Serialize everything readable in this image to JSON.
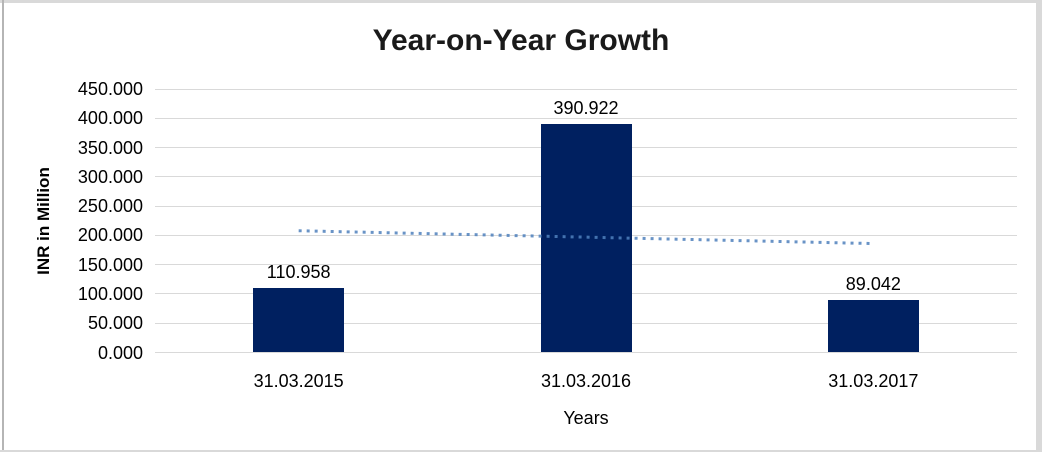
{
  "chart_data": {
    "type": "bar",
    "title": "Year-on-Year Growth",
    "xlabel": "Years",
    "ylabel": "INR in Million",
    "categories": [
      "31.03.2015",
      "31.03.2016",
      "31.03.2017"
    ],
    "values": [
      110.958,
      390.922,
      89.042
    ],
    "value_labels": [
      "110.958",
      "390.922",
      "89.042"
    ],
    "ylim": [
      0,
      450
    ],
    "y_tick_step": 50,
    "y_tick_labels": [
      "450.000",
      "400.000",
      "350.000",
      "300.000",
      "250.000",
      "200.000",
      "150.000",
      "100.000",
      "50.000",
      "0.000"
    ],
    "grid": true,
    "legend": "none",
    "colors": {
      "bar": "#002060",
      "gridline": "#d9d9d9",
      "trendline": "#4f81bd",
      "text": "#000000",
      "frame_border": "#d9d9d9"
    },
    "trendline": {
      "type": "linear",
      "style": "dotted",
      "start_value": 207.93,
      "end_value": 186.02
    }
  }
}
